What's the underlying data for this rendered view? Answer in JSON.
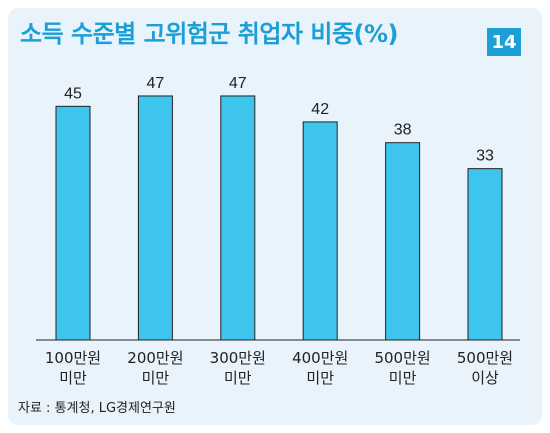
{
  "colors": {
    "background": "#e9f3fb",
    "title": "#1b9fd6",
    "badge": "#1b9fd6",
    "bar": "#3dc5ee",
    "bar_stroke": "#222222"
  },
  "title": "소득 수준별 고위험군 취업자 비중(%)",
  "badge": "14",
  "source": "자료 : 통계청, LG경제연구원",
  "chart_data": {
    "type": "bar",
    "title": "소득 수준별 고위험군 취업자 비중(%)",
    "categories": [
      [
        "100만원",
        "미만"
      ],
      [
        "200만원",
        "미만"
      ],
      [
        "300만원",
        "미만"
      ],
      [
        "400만원",
        "미만"
      ],
      [
        "500만원",
        "미만"
      ],
      [
        "500만원",
        "이상"
      ]
    ],
    "values": [
      45,
      47,
      47,
      42,
      38,
      33
    ],
    "data_labels": [
      "45",
      "47",
      "47",
      "42",
      "38",
      "33"
    ],
    "xlabel": "",
    "ylabel": "",
    "ylim": [
      0,
      52
    ],
    "grid": false,
    "legend": "none"
  }
}
